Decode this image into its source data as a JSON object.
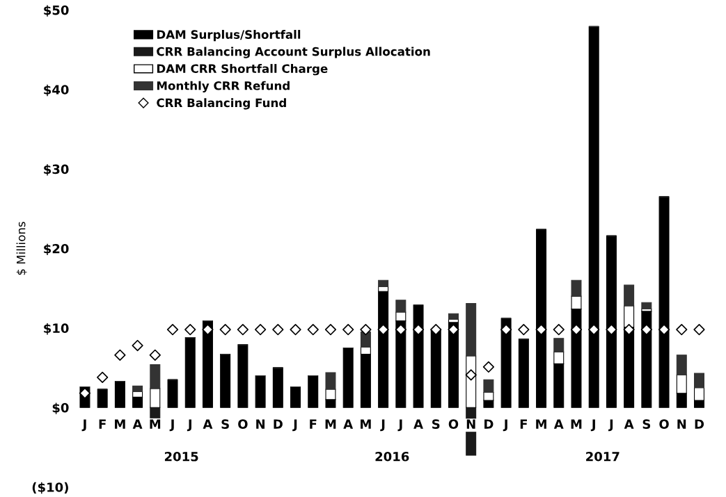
{
  "chart_data": {
    "type": "bar",
    "stacked": true,
    "ylabel": "$ Millions",
    "categories": [
      "J",
      "F",
      "M",
      "A",
      "M",
      "J",
      "J",
      "A",
      "S",
      "O",
      "N",
      "D",
      "J",
      "F",
      "M",
      "A",
      "M",
      "J",
      "J",
      "A",
      "S",
      "O",
      "N",
      "D",
      "J",
      "F",
      "M",
      "A",
      "M",
      "J",
      "J",
      "A",
      "S",
      "O",
      "N",
      "D"
    ],
    "series": [
      {
        "name": "DAM Surplus/Shortfall",
        "color": "#000000",
        "values": [
          2.6,
          2.3,
          3.3,
          1.3,
          null,
          3.5,
          8.8,
          10.9,
          6.7,
          7.9,
          4.0,
          5.0,
          2.6,
          4.0,
          1.0,
          7.5,
          6.7,
          14.6,
          10.9,
          12.9,
          9.8,
          10.7,
          0,
          0.9,
          11.2,
          8.6,
          22.4,
          5.5,
          12.4,
          47.9,
          21.6,
          10.1,
          12.1,
          26.5,
          1.8,
          0.9
        ]
      },
      {
        "name": "CRR Balancing Account Surplus Allocation",
        "color": "#1a1a1a",
        "values": [
          0,
          0,
          0,
          0,
          -1.3,
          0,
          0,
          0,
          0,
          0,
          0,
          0,
          0,
          0,
          0,
          0,
          0,
          0,
          0,
          0,
          0,
          0,
          -6.0,
          0,
          0,
          0,
          0,
          0,
          0,
          0,
          0,
          0,
          0,
          0,
          0,
          0
        ]
      },
      {
        "name": "DAM CRR Shortfall Charge",
        "color": "#ffffff",
        "values": [
          0,
          0,
          0,
          0.7,
          2.4,
          0,
          0,
          0,
          0,
          0,
          0,
          0,
          0,
          0,
          1.3,
          0,
          0.9,
          0.6,
          1.1,
          0,
          0,
          0.4,
          6.5,
          1.0,
          0,
          0,
          0,
          1.5,
          1.6,
          0,
          0,
          2.7,
          0.3,
          0,
          2.3,
          1.6
        ]
      },
      {
        "name": "Monthly CRR Refund",
        "color": "#333333",
        "values": [
          0,
          0,
          0,
          0.7,
          3.0,
          0,
          0,
          0,
          0,
          0,
          0,
          0,
          0,
          0,
          2.1,
          0,
          1.9,
          0.8,
          1.5,
          0,
          0,
          0.7,
          6.6,
          1.6,
          0,
          0,
          0,
          1.7,
          2.0,
          0,
          0,
          2.6,
          0.8,
          0,
          2.5,
          1.8
        ]
      },
      {
        "name": "CRR Balancing Fund",
        "type": "scatter",
        "marker": "diamond",
        "color": "#ffffff",
        "values": [
          1.8,
          3.8,
          6.6,
          7.8,
          6.6,
          9.8,
          9.8,
          9.8,
          9.8,
          9.8,
          9.8,
          9.8,
          9.8,
          9.8,
          9.8,
          9.8,
          9.8,
          9.8,
          9.8,
          9.8,
          9.8,
          9.8,
          4.1,
          5.1,
          9.8,
          9.8,
          9.8,
          9.8,
          9.8,
          9.8,
          9.8,
          9.8,
          9.8,
          9.8,
          9.8,
          9.8
        ]
      }
    ],
    "ylim": [
      -10,
      50
    ],
    "yticks": [
      {
        "value": -10,
        "label": "($10)"
      },
      {
        "value": 0,
        "label": "$0"
      },
      {
        "value": 10,
        "label": "$10"
      },
      {
        "value": 20,
        "label": "$20"
      },
      {
        "value": 30,
        "label": "$30"
      },
      {
        "value": 40,
        "label": "$40"
      },
      {
        "value": 50,
        "label": "$50"
      }
    ],
    "annotations": [
      "2015",
      "2016",
      "2017"
    ],
    "grid": false,
    "legend": "top left"
  }
}
